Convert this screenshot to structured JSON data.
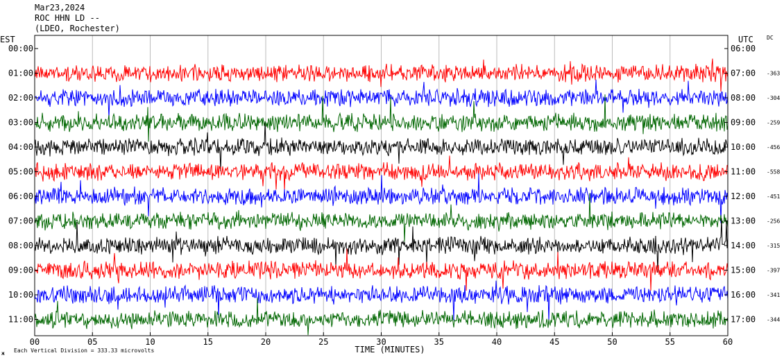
{
  "header": {
    "date": "Mar23,2024",
    "station": "ROC HHN LD --",
    "network": "(LDEO, Rochester)"
  },
  "left_axis_title": "EST",
  "right_axis_title": "UTC",
  "dc_title": "DC",
  "xlabel": "TIME (MINUTES)",
  "footer_note": "Each Vertical Division =  333.33 microvolts",
  "footer_mark": "ж",
  "chart_data": {
    "type": "line",
    "title": "",
    "xlabel": "TIME (MINUTES)",
    "ylabel": "",
    "xlim": [
      0,
      60
    ],
    "x_ticks": [
      0,
      5,
      10,
      15,
      20,
      25,
      30,
      35,
      40,
      45,
      50,
      55,
      60
    ],
    "x_tick_labels": [
      "00",
      "05",
      "10",
      "15",
      "20",
      "25",
      "30",
      "35",
      "40",
      "45",
      "50",
      "55",
      "60"
    ],
    "grid": true,
    "row_colors": [
      "#ff0000",
      "#0000ff",
      "#006600",
      "#000000"
    ],
    "rows": [
      {
        "est": "00:00",
        "utc": "06:00",
        "dc": "",
        "color": "",
        "has_trace": false
      },
      {
        "est": "01:00",
        "utc": "07:00",
        "dc": "-363",
        "color": "#ff0000",
        "has_trace": true
      },
      {
        "est": "02:00",
        "utc": "08:00",
        "dc": "-304",
        "color": "#0000ff",
        "has_trace": true
      },
      {
        "est": "03:00",
        "utc": "09:00",
        "dc": "-259",
        "color": "#006600",
        "has_trace": true
      },
      {
        "est": "04:00",
        "utc": "10:00",
        "dc": "-456",
        "color": "#000000",
        "has_trace": true
      },
      {
        "est": "05:00",
        "utc": "11:00",
        "dc": "-558",
        "color": "#ff0000",
        "has_trace": true
      },
      {
        "est": "06:00",
        "utc": "12:00",
        "dc": "-451",
        "color": "#0000ff",
        "has_trace": true
      },
      {
        "est": "07:00",
        "utc": "13:00",
        "dc": "-256",
        "color": "#006600",
        "has_trace": true
      },
      {
        "est": "08:00",
        "utc": "14:00",
        "dc": "-315",
        "color": "#000000",
        "has_trace": true
      },
      {
        "est": "09:00",
        "utc": "15:00",
        "dc": "-397",
        "color": "#ff0000",
        "has_trace": true
      },
      {
        "est": "10:00",
        "utc": "16:00",
        "dc": "-341",
        "color": "#0000ff",
        "has_trace": true
      },
      {
        "est": "11:00",
        "utc": "17:00",
        "dc": "-344",
        "color": "#006600",
        "has_trace": true
      }
    ]
  }
}
